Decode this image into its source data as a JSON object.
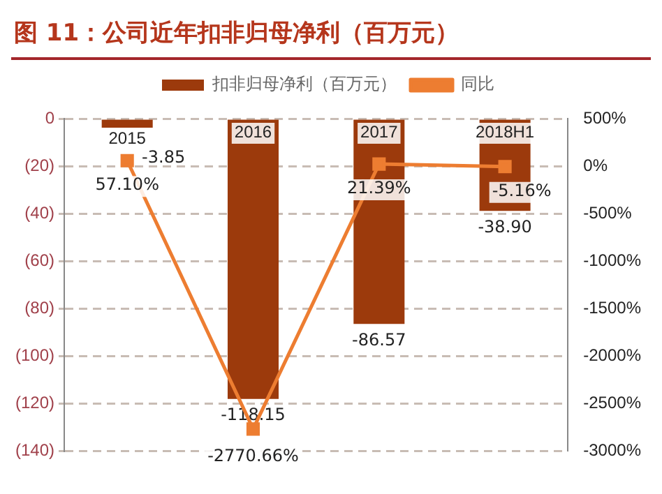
{
  "chart_data": {
    "type": "bar",
    "title": "图 11：公司近年扣非归母净利（百万元）",
    "categories": [
      "2015",
      "2016",
      "2017",
      "2018H1"
    ],
    "series": [
      {
        "name": "扣非归母净利（百万元）",
        "color": "#9c3a0c",
        "values": [
          -3.85,
          -118.15,
          -86.57,
          -38.9
        ],
        "value_labels": [
          "-3.85",
          "-118.15",
          "-86.57",
          "-38.90"
        ]
      },
      {
        "name": "同比",
        "type": "line",
        "axis": "y2",
        "color": "#ed7d31",
        "values": [
          57.1,
          -2770.66,
          21.39,
          -5.16
        ],
        "value_labels": [
          "57.10%",
          "-2770.66%",
          "21.39%",
          "-5.16%"
        ]
      }
    ],
    "ylim": [
      -140,
      0
    ],
    "yticks": [
      {
        "value": -140,
        "label": "(140)"
      },
      {
        "value": -120,
        "label": "(120)"
      },
      {
        "value": -100,
        "label": "(100)"
      },
      {
        "value": -80,
        "label": "(80)"
      },
      {
        "value": -60,
        "label": "(60)"
      },
      {
        "value": -40,
        "label": "(40)"
      },
      {
        "value": -20,
        "label": "(20)"
      },
      0
    ],
    "y2lim": [
      -3000,
      500
    ],
    "y2ticks": [
      {
        "value": -3000,
        "label": "-3000%"
      },
      {
        "value": -2500,
        "label": "-2500%"
      },
      {
        "value": -2000,
        "label": "-2000%"
      },
      {
        "value": -1500,
        "label": "-1500%"
      },
      {
        "value": -1000,
        "label": "-1000%"
      },
      {
        "value": -500,
        "label": "-500%"
      },
      {
        "value": 0,
        "label": "0%"
      },
      {
        "value": 500,
        "label": "500%"
      }
    ],
    "grid": "y",
    "legend": "top",
    "marker": "square",
    "line_style": "solid"
  }
}
